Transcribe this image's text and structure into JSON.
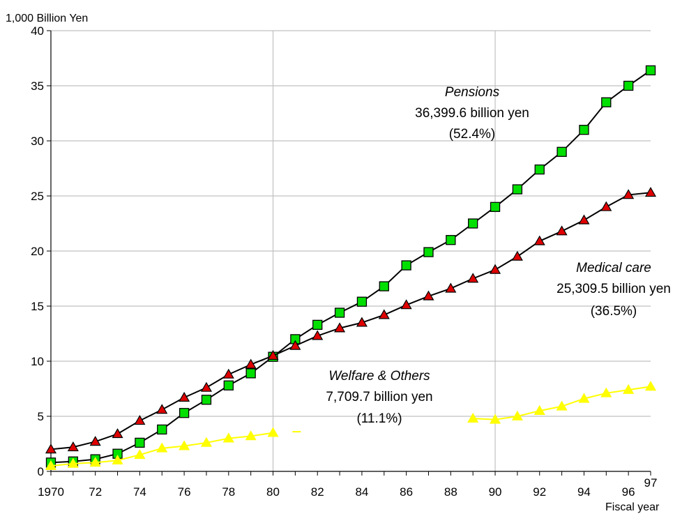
{
  "chart_data": {
    "type": "line",
    "ylabel": "1,000 Billion Yen",
    "xlabel": "Fiscal year",
    "ylim": [
      0,
      40
    ],
    "xlim": [
      1970,
      1997
    ],
    "yticks": [
      0,
      5,
      10,
      15,
      20,
      25,
      30,
      35,
      40
    ],
    "xtick_labels": [
      {
        "year": 1970,
        "label": "1970"
      },
      {
        "year": 1972,
        "label": "72"
      },
      {
        "year": 1974,
        "label": "74"
      },
      {
        "year": 1976,
        "label": "76"
      },
      {
        "year": 1978,
        "label": "78"
      },
      {
        "year": 1980,
        "label": "80"
      },
      {
        "year": 1982,
        "label": "82"
      },
      {
        "year": 1984,
        "label": "84"
      },
      {
        "year": 1986,
        "label": "86"
      },
      {
        "year": 1988,
        "label": "88"
      },
      {
        "year": 1990,
        "label": "90"
      },
      {
        "year": 1992,
        "label": "92"
      },
      {
        "year": 1994,
        "label": "94"
      },
      {
        "year": 1996,
        "label": "96"
      },
      {
        "year": 1997,
        "label": "97"
      }
    ],
    "x": [
      1970,
      1971,
      1972,
      1973,
      1974,
      1975,
      1976,
      1977,
      1978,
      1979,
      1980,
      1981,
      1982,
      1983,
      1984,
      1985,
      1986,
      1987,
      1988,
      1989,
      1990,
      1991,
      1992,
      1993,
      1994,
      1995,
      1996,
      1997
    ],
    "series": [
      {
        "name": "Pensions",
        "marker": "square",
        "color": "#00e000",
        "line_color": "#000000",
        "values": [
          0.8,
          0.9,
          1.1,
          1.6,
          2.6,
          3.8,
          5.3,
          6.5,
          7.8,
          8.9,
          10.4,
          12.0,
          13.3,
          14.4,
          15.4,
          16.8,
          18.7,
          19.9,
          21.0,
          22.5,
          24.0,
          25.6,
          27.4,
          29.0,
          31.0,
          33.5,
          35.0,
          36.4
        ]
      },
      {
        "name": "Medical care",
        "marker": "triangle",
        "color": "#e00000",
        "line_color": "#000000",
        "values": [
          2.0,
          2.2,
          2.7,
          3.4,
          4.6,
          5.6,
          6.7,
          7.6,
          8.8,
          9.7,
          10.5,
          11.4,
          12.3,
          13.0,
          13.5,
          14.2,
          15.1,
          15.9,
          16.6,
          17.5,
          18.3,
          19.5,
          20.9,
          21.8,
          22.8,
          24.0,
          25.1,
          25.3
        ]
      },
      {
        "name": "Welfare & Others",
        "marker": "triangle",
        "color": "#ffff00",
        "line_color": "#ffff00",
        "values": [
          0.5,
          0.7,
          0.8,
          1.0,
          1.5,
          2.1,
          2.3,
          2.6,
          3.0,
          3.2,
          3.5,
          null,
          null,
          null,
          null,
          null,
          null,
          null,
          null,
          4.8,
          4.7,
          5.0,
          5.5,
          5.9,
          6.6,
          7.1,
          7.4,
          7.7
        ]
      }
    ],
    "annotations": [
      {
        "name": "Pensions",
        "amount": "36,399.6 billion yen",
        "share": "(52.4%)"
      },
      {
        "name": "Medical care",
        "amount": "25,309.5 billion yen",
        "share": "(36.5%)"
      },
      {
        "name": "Welfare & Others",
        "amount": "7,709.7 billion yen",
        "share": "(11.1%)"
      }
    ],
    "grid": true
  }
}
